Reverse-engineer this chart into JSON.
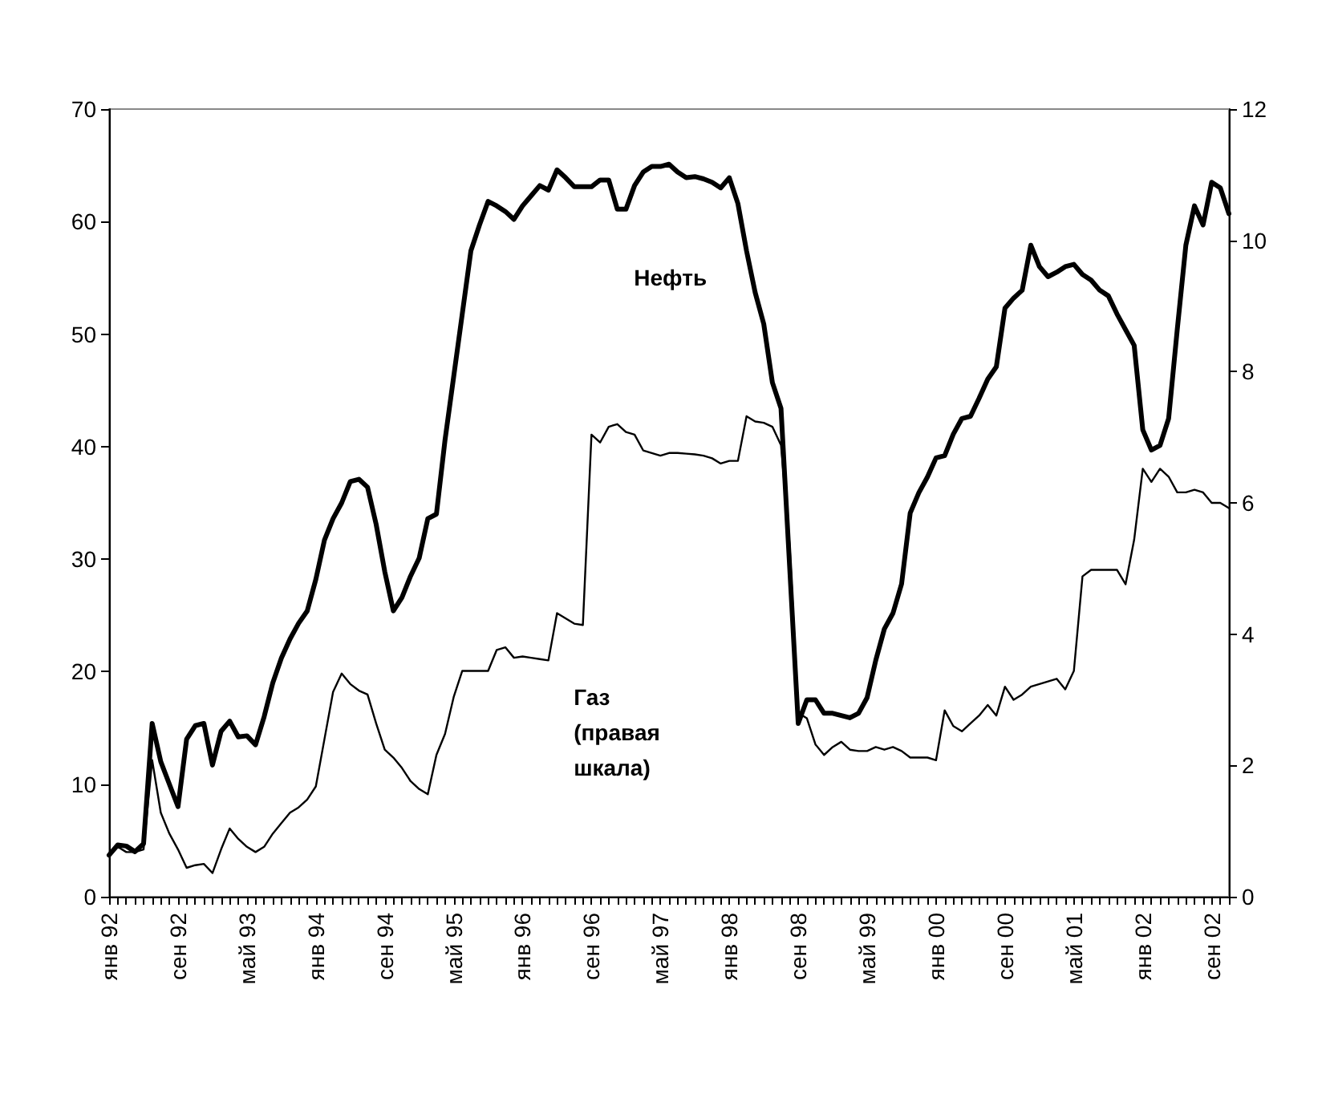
{
  "chart_data": {
    "type": "line",
    "categories": [
      "янв 92",
      null,
      null,
      null,
      null,
      null,
      null,
      null,
      "сен 92",
      null,
      null,
      null,
      null,
      null,
      null,
      null,
      "май 93",
      null,
      null,
      null,
      null,
      null,
      null,
      null,
      "янв 94",
      null,
      null,
      null,
      null,
      null,
      null,
      null,
      "сен 94",
      null,
      null,
      null,
      null,
      null,
      null,
      null,
      "май 95",
      null,
      null,
      null,
      null,
      null,
      null,
      null,
      "янв 96",
      null,
      null,
      null,
      null,
      null,
      null,
      null,
      "сен 96",
      null,
      null,
      null,
      null,
      null,
      null,
      null,
      "май 97",
      null,
      null,
      null,
      null,
      null,
      null,
      null,
      "янв 98",
      null,
      null,
      null,
      null,
      null,
      null,
      null,
      "сен 98",
      null,
      null,
      null,
      null,
      null,
      null,
      null,
      "май 99",
      null,
      null,
      null,
      null,
      null,
      null,
      null,
      "янв 00",
      null,
      null,
      null,
      null,
      null,
      null,
      null,
      "сен 00",
      null,
      null,
      null,
      null,
      null,
      null,
      null,
      "май 01",
      null,
      null,
      null,
      null,
      null,
      null,
      null,
      "янв 02",
      null,
      null,
      null,
      null,
      null,
      null,
      null,
      "сен 02",
      null,
      null
    ],
    "series": [
      {
        "name": "Нефть",
        "color": "#000000",
        "values": [
          3.7,
          4.6,
          4.5,
          4.0,
          4.7,
          15.4,
          12.0,
          10.0,
          8.0,
          14.0,
          15.2,
          15.4,
          11.7,
          14.7,
          15.6,
          14.2,
          14.3,
          13.5,
          16.0,
          19.0,
          21.2,
          22.9,
          24.3,
          25.4,
          28.2,
          31.7,
          33.6,
          35.0,
          36.9,
          37.1,
          36.4,
          33.1,
          28.9,
          25.4,
          26.6,
          28.5,
          30.1,
          33.6,
          34.0,
          40.6,
          46.2,
          51.8,
          57.4,
          59.7,
          61.8,
          61.4,
          60.9,
          60.2,
          61.4,
          62.3,
          63.2,
          62.8,
          64.6,
          63.9,
          63.1,
          63.1,
          63.1,
          63.7,
          63.7,
          61.1,
          61.1,
          63.2,
          64.4,
          64.9,
          64.9,
          65.1,
          64.4,
          63.9,
          64.0,
          63.8,
          63.5,
          63.0,
          63.9,
          61.6,
          57.4,
          53.7,
          50.9,
          45.7,
          43.4,
          29.4,
          15.4,
          17.5,
          17.5,
          16.3,
          16.3,
          16.1,
          15.9,
          16.3,
          17.7,
          21.0,
          23.8,
          25.2,
          27.8,
          34.1,
          35.9,
          37.3,
          39.0,
          39.2,
          41.1,
          42.5,
          42.7,
          44.3,
          46.0,
          47.1,
          52.3,
          53.2,
          53.9,
          57.9,
          56.0,
          55.1,
          55.5,
          56.0,
          56.2,
          55.3,
          54.8,
          53.9,
          53.4,
          51.8,
          50.4,
          49.0,
          41.5,
          39.7,
          40.1,
          42.5,
          50.4,
          57.9,
          61.4,
          59.7,
          63.5,
          63.0,
          60.7
        ]
      },
      {
        "name": "Газ (правая шкала)",
        "color": "#000000",
        "axis": "y2",
        "values": [
          0.64,
          0.76,
          0.68,
          0.68,
          0.72,
          2.08,
          1.28,
          0.96,
          0.72,
          0.44,
          0.48,
          0.5,
          0.36,
          0.72,
          1.04,
          0.88,
          0.76,
          0.68,
          0.76,
          0.96,
          1.12,
          1.28,
          1.36,
          1.48,
          1.68,
          2.4,
          3.12,
          3.4,
          3.24,
          3.14,
          3.08,
          2.64,
          2.24,
          2.12,
          1.96,
          1.76,
          1.64,
          1.56,
          2.16,
          2.48,
          3.04,
          3.44,
          3.44,
          3.44,
          3.44,
          3.76,
          3.8,
          3.64,
          3.66,
          3.64,
          3.62,
          3.6,
          4.32,
          4.24,
          4.16,
          4.14,
          7.04,
          6.92,
          7.16,
          7.2,
          7.08,
          7.04,
          6.8,
          6.76,
          6.72,
          6.76,
          6.76,
          6.75,
          6.74,
          6.72,
          6.68,
          6.6,
          6.64,
          6.64,
          7.32,
          7.24,
          7.22,
          7.16,
          6.88,
          5.36,
          2.8,
          2.72,
          2.32,
          2.16,
          2.28,
          2.36,
          2.24,
          2.22,
          2.22,
          2.28,
          2.24,
          2.28,
          2.22,
          2.12,
          2.12,
          2.12,
          2.08,
          2.84,
          2.6,
          2.52,
          2.64,
          2.76,
          2.92,
          2.76,
          3.2,
          3.0,
          3.08,
          3.2,
          3.24,
          3.28,
          3.32,
          3.16,
          3.44,
          4.88,
          4.98,
          4.98,
          4.98,
          4.98,
          4.76,
          5.44,
          6.52,
          6.32,
          6.52,
          6.4,
          6.16,
          6.16,
          6.2,
          6.16,
          6.0,
          6.0,
          5.92
        ]
      }
    ],
    "ylim": [
      0,
      70
    ],
    "yticks": [
      0,
      10,
      20,
      30,
      40,
      50,
      60,
      70
    ],
    "y2lim": [
      0,
      12
    ],
    "y2ticks": [
      0,
      2,
      4,
      6,
      8,
      10,
      12
    ],
    "grid": false,
    "legend": false,
    "marker": "none",
    "line_style": "solid"
  }
}
